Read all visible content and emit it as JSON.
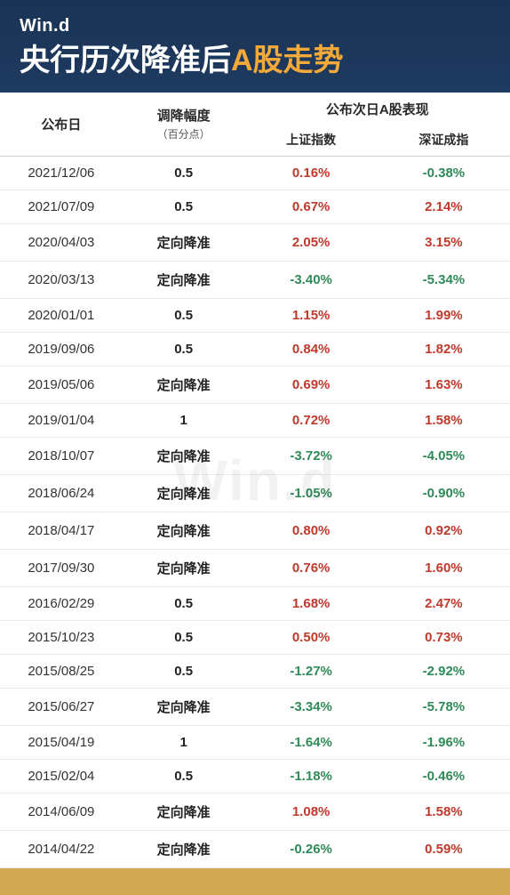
{
  "brand": "Win.d",
  "title_prefix": "央行历次降准后",
  "title_accent": "A股走势",
  "watermark": "Win.d",
  "columns": {
    "date": "公布日",
    "amount": "调降幅度",
    "amount_sub": "（百分点）",
    "group": "公布次日A股表现",
    "sh": "上证指数",
    "sz": "深证成指"
  },
  "colors": {
    "header_bg": "#1e3a5f",
    "accent": "#f4a938",
    "positive": "#c0392b",
    "negative": "#2e8b57",
    "footer": "#d4a954"
  },
  "rows": [
    {
      "date": "2021/12/06",
      "amount": "0.5",
      "sh": "0.16%",
      "sh_sign": 1,
      "sz": "-0.38%",
      "sz_sign": -1
    },
    {
      "date": "2021/07/09",
      "amount": "0.5",
      "sh": "0.67%",
      "sh_sign": 1,
      "sz": "2.14%",
      "sz_sign": 1
    },
    {
      "date": "2020/04/03",
      "amount": "定向降准",
      "sh": "2.05%",
      "sh_sign": 1,
      "sz": "3.15%",
      "sz_sign": 1
    },
    {
      "date": "2020/03/13",
      "amount": "定向降准",
      "sh": "-3.40%",
      "sh_sign": -1,
      "sz": "-5.34%",
      "sz_sign": -1
    },
    {
      "date": "2020/01/01",
      "amount": "0.5",
      "sh": "1.15%",
      "sh_sign": 1,
      "sz": "1.99%",
      "sz_sign": 1
    },
    {
      "date": "2019/09/06",
      "amount": "0.5",
      "sh": "0.84%",
      "sh_sign": 1,
      "sz": "1.82%",
      "sz_sign": 1
    },
    {
      "date": "2019/05/06",
      "amount": "定向降准",
      "sh": "0.69%",
      "sh_sign": 1,
      "sz": "1.63%",
      "sz_sign": 1
    },
    {
      "date": "2019/01/04",
      "amount": "1",
      "sh": "0.72%",
      "sh_sign": 1,
      "sz": "1.58%",
      "sz_sign": 1
    },
    {
      "date": "2018/10/07",
      "amount": "定向降准",
      "sh": "-3.72%",
      "sh_sign": -1,
      "sz": "-4.05%",
      "sz_sign": -1
    },
    {
      "date": "2018/06/24",
      "amount": "定向降准",
      "sh": "-1.05%",
      "sh_sign": -1,
      "sz": "-0.90%",
      "sz_sign": -1
    },
    {
      "date": "2018/04/17",
      "amount": "定向降准",
      "sh": "0.80%",
      "sh_sign": 1,
      "sz": "0.92%",
      "sz_sign": 1
    },
    {
      "date": "2017/09/30",
      "amount": "定向降准",
      "sh": "0.76%",
      "sh_sign": 1,
      "sz": "1.60%",
      "sz_sign": 1
    },
    {
      "date": "2016/02/29",
      "amount": "0.5",
      "sh": "1.68%",
      "sh_sign": 1,
      "sz": "2.47%",
      "sz_sign": 1
    },
    {
      "date": "2015/10/23",
      "amount": "0.5",
      "sh": "0.50%",
      "sh_sign": 1,
      "sz": "0.73%",
      "sz_sign": 1
    },
    {
      "date": "2015/08/25",
      "amount": "0.5",
      "sh": "-1.27%",
      "sh_sign": -1,
      "sz": "-2.92%",
      "sz_sign": -1
    },
    {
      "date": "2015/06/27",
      "amount": "定向降准",
      "sh": "-3.34%",
      "sh_sign": -1,
      "sz": "-5.78%",
      "sz_sign": -1
    },
    {
      "date": "2015/04/19",
      "amount": "1",
      "sh": "-1.64%",
      "sh_sign": -1,
      "sz": "-1.96%",
      "sz_sign": -1
    },
    {
      "date": "2015/02/04",
      "amount": "0.5",
      "sh": "-1.18%",
      "sh_sign": -1,
      "sz": "-0.46%",
      "sz_sign": -1
    },
    {
      "date": "2014/06/09",
      "amount": "定向降准",
      "sh": "1.08%",
      "sh_sign": 1,
      "sz": "1.58%",
      "sz_sign": 1
    },
    {
      "date": "2014/04/22",
      "amount": "定向降准",
      "sh": "-0.26%",
      "sh_sign": -1,
      "sz": "0.59%",
      "sz_sign": 1
    }
  ]
}
